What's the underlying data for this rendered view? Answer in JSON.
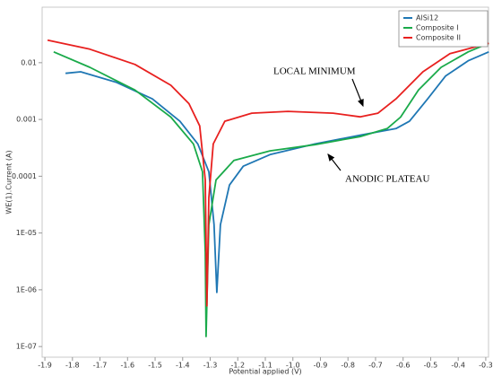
{
  "chart_data": {
    "type": "line",
    "xlabel": "Potential applied (V)",
    "ylabel": "WE(1).Current (A)",
    "log_y": true,
    "grid": false,
    "legend": "top-right",
    "xlim": [
      -1.91,
      -0.29
    ],
    "ylim": [
      6.5e-08,
      0.095
    ],
    "xticks": [
      -1.9,
      -1.8,
      -1.7,
      -1.6,
      -1.5,
      -1.4,
      -1.3,
      -1.2,
      -1.1,
      {
        "value": -1,
        "label": "-1.0"
      },
      -0.9,
      -0.8,
      -0.7,
      -0.6,
      -0.5,
      -0.4,
      -0.3
    ],
    "yticks": [
      {
        "value": 1e-07,
        "label": "1E-07"
      },
      {
        "value": 1e-06,
        "label": "1E-06"
      },
      {
        "value": 1e-05,
        "label": "1E-05"
      },
      0.0001,
      0.001,
      0.01
    ],
    "annotations": [
      "LOCAL MINIMUM",
      "ANODIC PLATEAU"
    ],
    "series": [
      {
        "name": "AlSi12",
        "color": "#1f77b4",
        "x": [
          -1.825,
          -1.77,
          -1.64,
          -1.51,
          -1.41,
          -1.345,
          -1.305,
          -1.286,
          -1.276,
          -1.263,
          -1.23,
          -1.18,
          -1.083,
          -0.92,
          -0.756,
          -0.626,
          -0.577,
          -0.511,
          -0.446,
          -0.364,
          -0.289
        ],
        "values": [
          0.0065,
          0.0069,
          0.0045,
          0.0023,
          0.00093,
          0.00037,
          0.00012,
          1.4e-05,
          9e-07,
          1.4e-05,
          7e-05,
          0.00015,
          0.00024,
          0.00037,
          0.00053,
          0.00069,
          0.00093,
          0.0023,
          0.0058,
          0.0108,
          0.0155
        ]
      },
      {
        "name": "Composite I",
        "color": "#1aaa4a",
        "x": [
          -1.868,
          -1.737,
          -1.573,
          -1.443,
          -1.361,
          -1.328,
          -1.318,
          -1.315,
          -1.305,
          -1.279,
          -1.214,
          -1.083,
          -0.92,
          -0.756,
          -0.658,
          -0.609,
          -0.544,
          -0.462,
          -0.364,
          -0.289
        ],
        "values": [
          0.0155,
          0.0083,
          0.0033,
          0.0011,
          0.00037,
          0.00012,
          4.6e-06,
          1.5e-07,
          1.4e-05,
          8.6e-05,
          0.00019,
          0.00028,
          0.00036,
          0.0005,
          0.00069,
          0.0011,
          0.0033,
          0.0083,
          0.0155,
          0.022
        ]
      },
      {
        "name": "Composite II",
        "color": "#e8201f",
        "x": [
          -1.89,
          -1.737,
          -1.573,
          -1.443,
          -1.377,
          -1.338,
          -1.318,
          -1.312,
          -1.305,
          -1.289,
          -1.247,
          -1.149,
          -1.018,
          -0.854,
          -0.756,
          -0.691,
          -0.626,
          -0.528,
          -0.43,
          -0.289
        ],
        "values": [
          0.025,
          0.0173,
          0.0093,
          0.004,
          0.0019,
          0.00077,
          8.6e-05,
          5.2e-07,
          4.2e-05,
          0.00037,
          0.00093,
          0.00129,
          0.00139,
          0.00129,
          0.00111,
          0.00129,
          0.0023,
          0.0069,
          0.0144,
          0.022
        ]
      }
    ]
  }
}
